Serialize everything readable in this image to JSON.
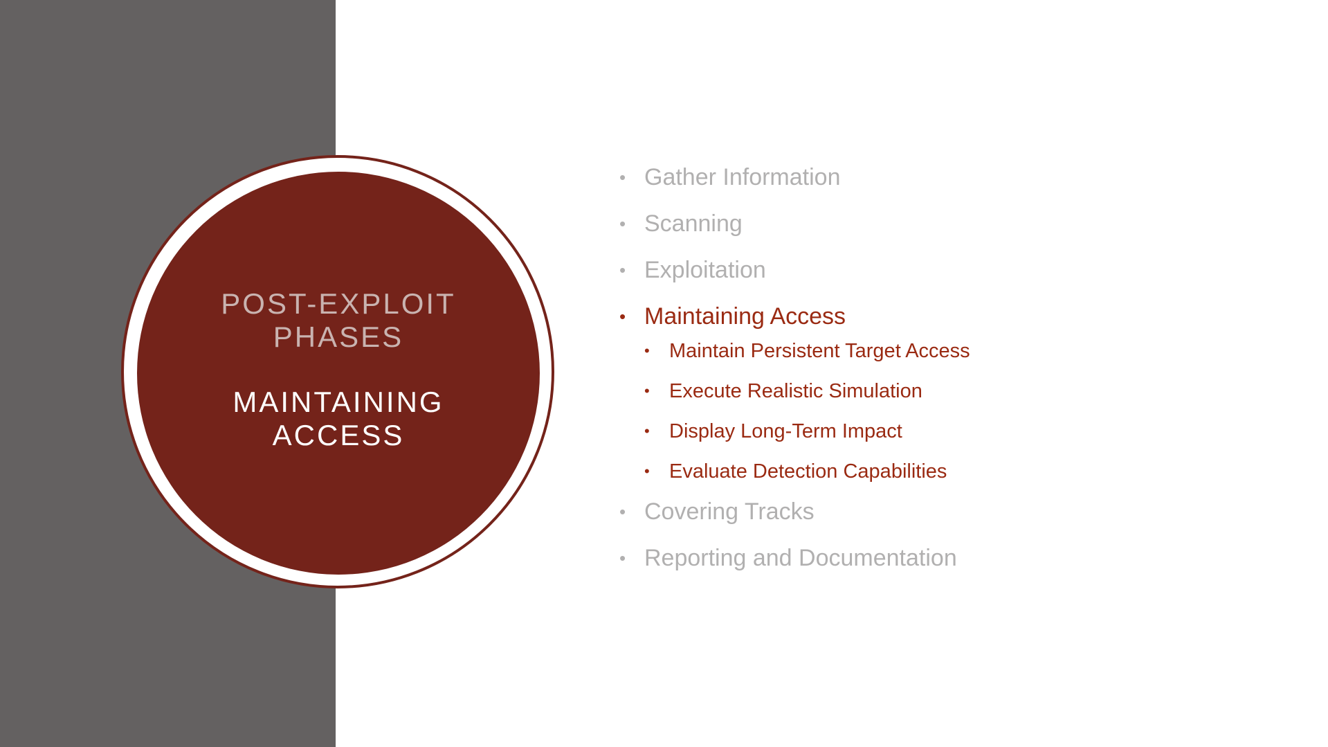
{
  "colors": {
    "panel": "#646161",
    "accent": "#74231a",
    "active_text": "#9a2a12",
    "inactive_text": "#b1b0b0",
    "phase_label": "#c9b3b0"
  },
  "circle": {
    "section_title_line1": "POST-EXPLOIT",
    "section_title_line2": "PHASES",
    "current_phase_line1": "MAINTAINING",
    "current_phase_line2": "ACCESS"
  },
  "bullets": {
    "marker": "•",
    "items": [
      {
        "label": "Gather Information"
      },
      {
        "label": "Scanning"
      },
      {
        "label": "Exploitation"
      },
      {
        "label": "Maintaining Access"
      },
      {
        "label": "Covering Tracks"
      },
      {
        "label": "Reporting and Documentation"
      }
    ],
    "active_subitems": [
      {
        "label": "Maintain Persistent Target Access"
      },
      {
        "label": "Execute Realistic Simulation"
      },
      {
        "label": "Display Long-Term Impact"
      },
      {
        "label": "Evaluate Detection Capabilities"
      }
    ]
  }
}
